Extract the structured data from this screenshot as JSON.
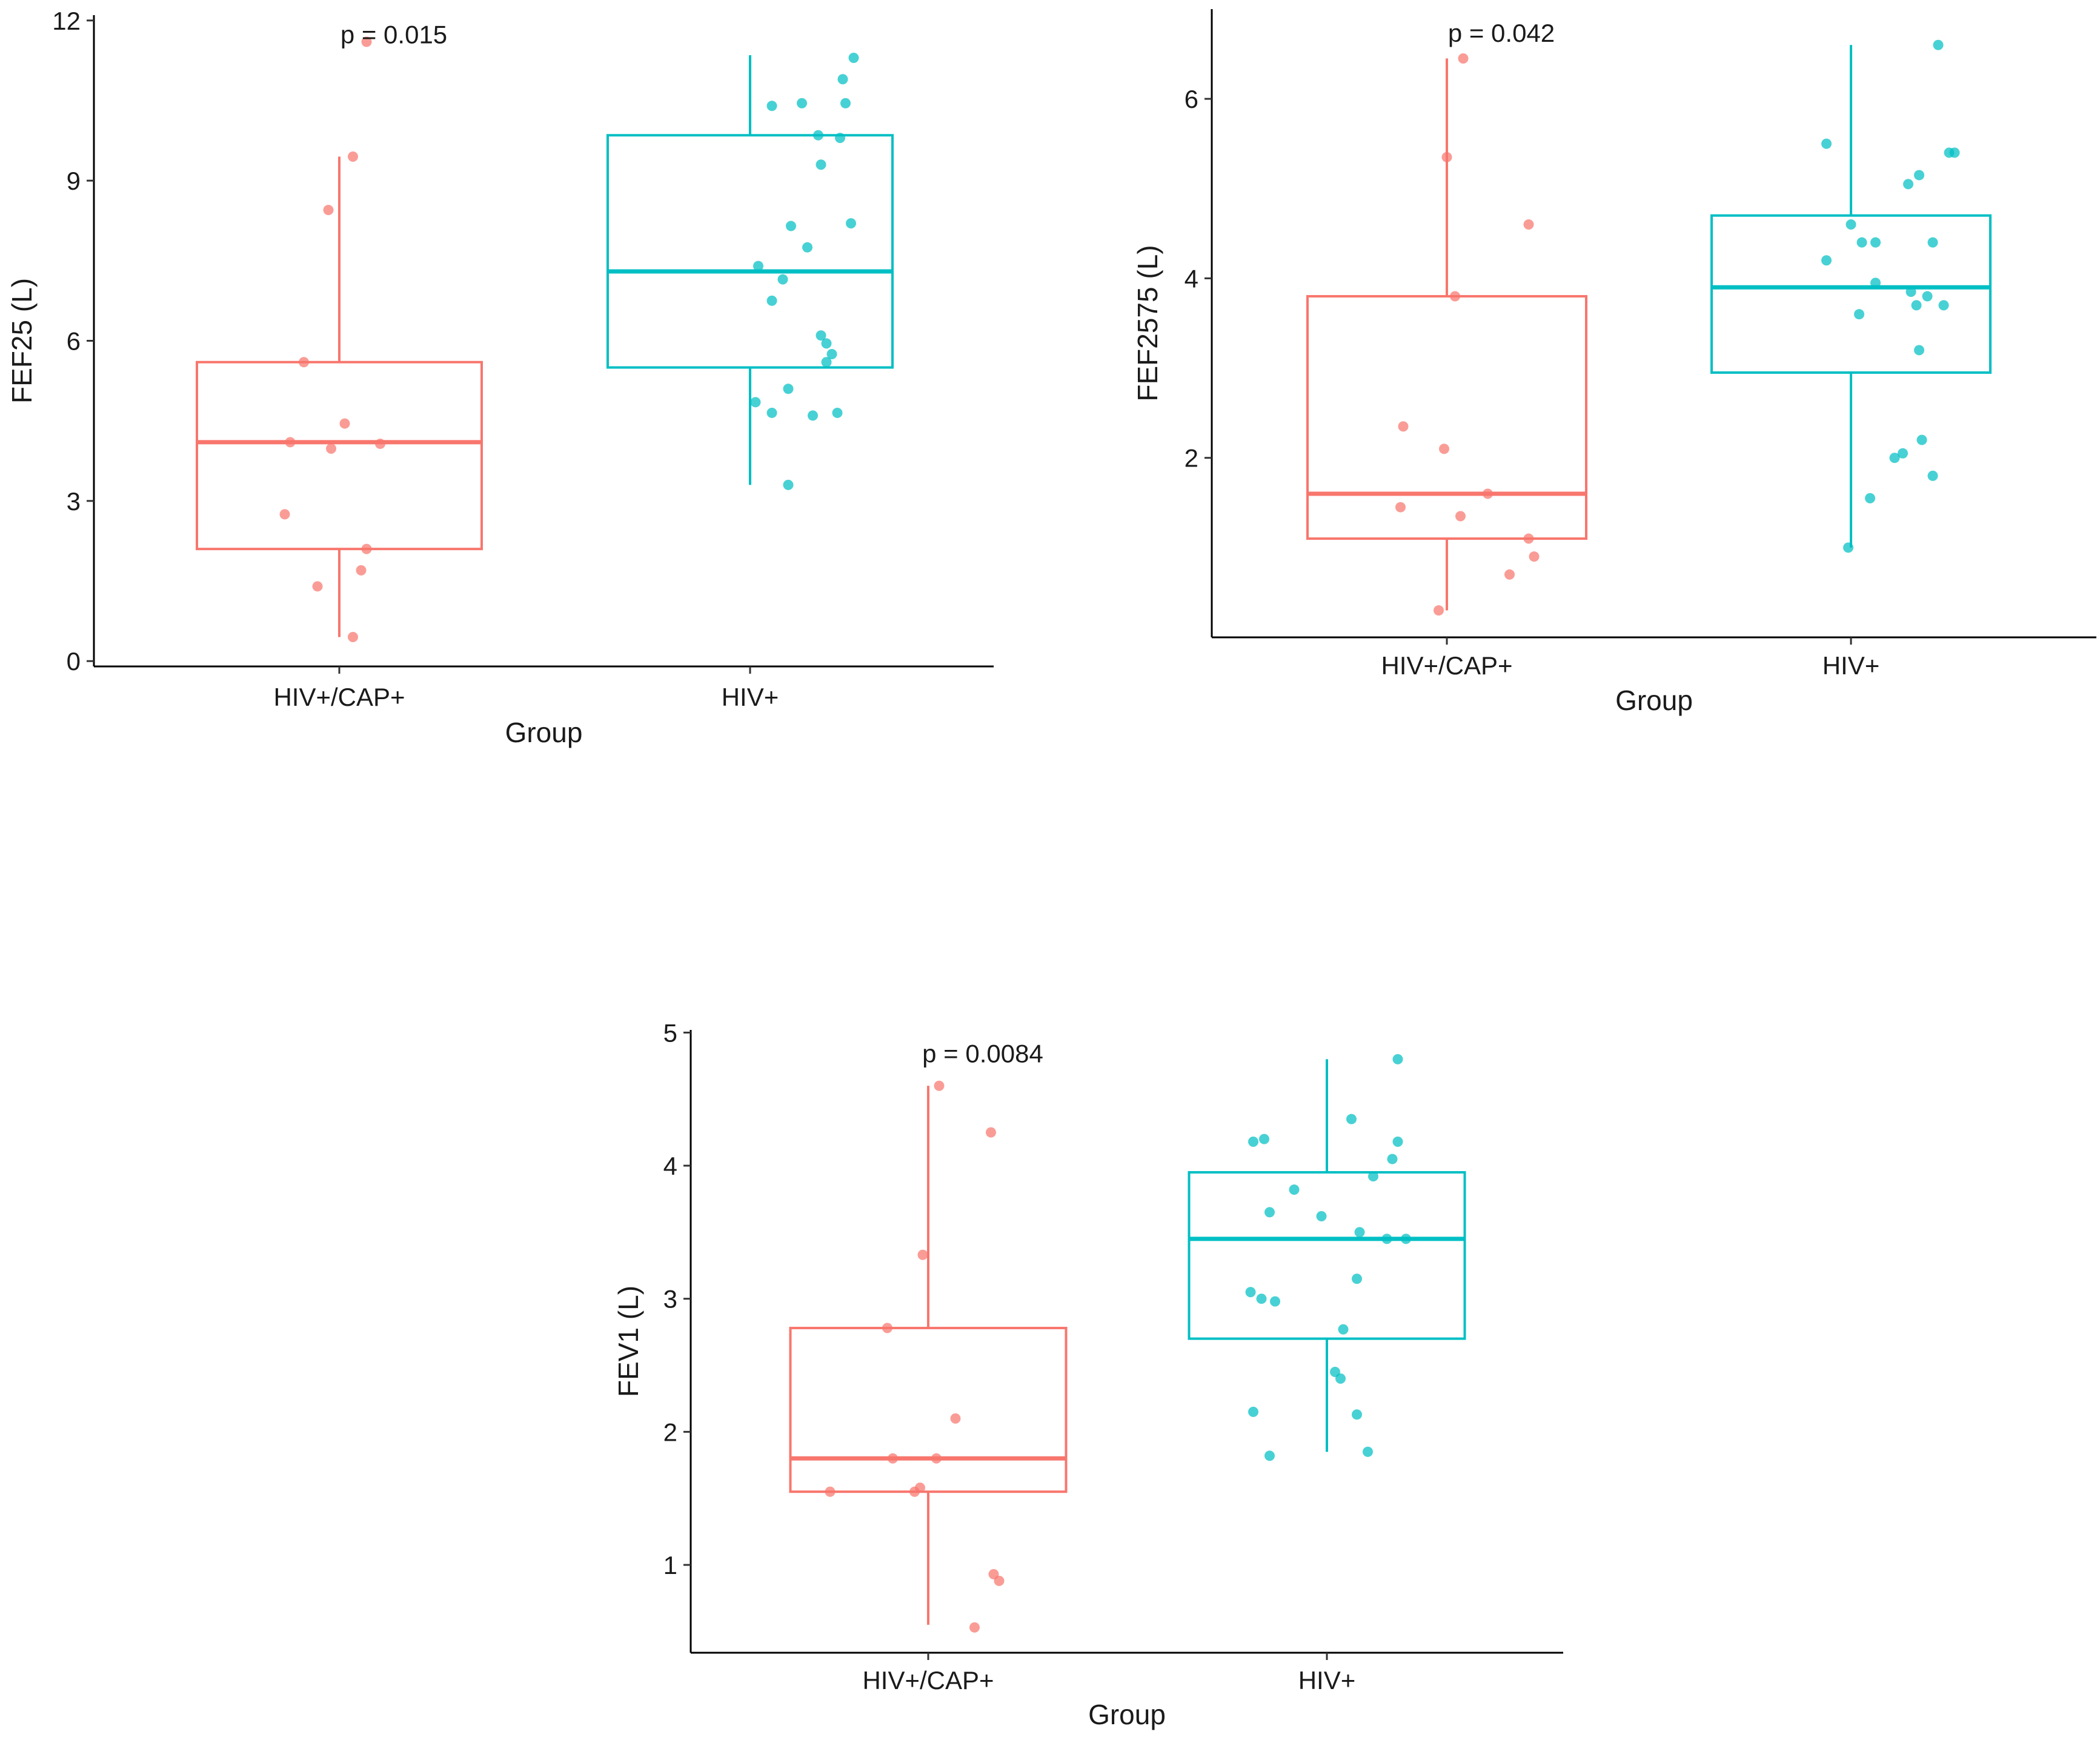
{
  "colors": {
    "group1": "#F8766D",
    "group2": "#00BFC4"
  },
  "chart_data": [
    {
      "type": "box",
      "title": "",
      "xlabel": "Group",
      "ylabel": "FEF25 (L)",
      "categories": [
        "HIV+/CAP+",
        "HIV+"
      ],
      "ylim": [
        -0.1,
        12.1
      ],
      "yticks": [
        0,
        3,
        6,
        9,
        12
      ],
      "ytick_labels": [
        "0",
        "3",
        "6",
        "9",
        "12"
      ],
      "annotation": "p = 0.015",
      "annotation_x": 1.2,
      "annotation_y": 11.73,
      "groups": [
        {
          "name": "HIV+/CAP+",
          "box": {
            "whisker_low": 0.45,
            "q1": 2.1,
            "median": 4.1,
            "q3": 5.6,
            "whisker_high": 9.45
          },
          "points": [
            [
              1.1,
              11.6
            ],
            [
              1.05,
              9.45
            ],
            [
              0.96,
              8.45
            ],
            [
              0.87,
              5.6
            ],
            [
              1.02,
              4.45
            ],
            [
              0.82,
              4.1
            ],
            [
              1.15,
              4.07
            ],
            [
              0.97,
              3.98
            ],
            [
              0.8,
              2.75
            ],
            [
              1.1,
              2.1
            ],
            [
              1.08,
              1.7
            ],
            [
              0.92,
              1.4
            ],
            [
              1.05,
              0.45
            ]
          ]
        },
        {
          "name": "HIV+",
          "box": {
            "whisker_low": 3.3,
            "q1": 5.5,
            "median": 7.3,
            "q3": 9.85,
            "whisker_high": 11.35
          },
          "points": [
            [
              1.38,
              11.3
            ],
            [
              1.34,
              10.9
            ],
            [
              1.19,
              10.45
            ],
            [
              1.35,
              10.45
            ],
            [
              1.08,
              10.4
            ],
            [
              1.25,
              9.85
            ],
            [
              1.33,
              9.8
            ],
            [
              1.26,
              9.3
            ],
            [
              1.37,
              8.2
            ],
            [
              1.15,
              8.15
            ],
            [
              1.21,
              7.75
            ],
            [
              1.03,
              7.4
            ],
            [
              1.12,
              7.15
            ],
            [
              1.08,
              6.75
            ],
            [
              1.26,
              6.1
            ],
            [
              1.28,
              5.95
            ],
            [
              1.3,
              5.75
            ],
            [
              1.28,
              5.6
            ],
            [
              1.14,
              5.1
            ],
            [
              1.02,
              4.85
            ],
            [
              1.08,
              4.65
            ],
            [
              1.23,
              4.6
            ],
            [
              1.32,
              4.65
            ],
            [
              1.14,
              3.3
            ]
          ]
        }
      ]
    },
    {
      "type": "box",
      "title": "",
      "xlabel": "Group",
      "ylabel": "FEF2575 (L)",
      "categories": [
        "HIV+/CAP+",
        "HIV+"
      ],
      "ylim": [
        0.0,
        7.0
      ],
      "yticks": [
        2,
        4,
        6
      ],
      "ytick_labels": [
        "2",
        "4",
        "6"
      ],
      "annotation": "p = 0.042",
      "annotation_x": 1.2,
      "annotation_y": 6.73,
      "groups": [
        {
          "name": "HIV+/CAP+",
          "box": {
            "whisker_low": 0.3,
            "q1": 1.1,
            "median": 1.6,
            "q3": 3.8,
            "whisker_high": 6.45
          },
          "points": [
            [
              1.06,
              6.45
            ],
            [
              1.0,
              5.35
            ],
            [
              1.3,
              4.6
            ],
            [
              1.03,
              3.8
            ],
            [
              0.84,
              2.35
            ],
            [
              0.99,
              2.1
            ],
            [
              1.15,
              1.6
            ],
            [
              0.83,
              1.45
            ],
            [
              1.05,
              1.35
            ],
            [
              1.3,
              1.1
            ],
            [
              1.32,
              0.9
            ],
            [
              1.23,
              0.7
            ],
            [
              0.97,
              0.3
            ]
          ]
        },
        {
          "name": "HIV+",
          "box": {
            "whisker_low": 1.0,
            "q1": 2.95,
            "median": 3.9,
            "q3": 4.7,
            "whisker_high": 6.6
          },
          "points": [
            [
              1.32,
              6.6
            ],
            [
              0.91,
              5.5
            ],
            [
              1.36,
              5.4
            ],
            [
              1.38,
              5.4
            ],
            [
              1.25,
              5.15
            ],
            [
              1.21,
              5.05
            ],
            [
              1.0,
              4.6
            ],
            [
              0.91,
              4.2
            ],
            [
              1.09,
              4.4
            ],
            [
              1.3,
              4.4
            ],
            [
              1.04,
              4.4
            ],
            [
              1.09,
              3.95
            ],
            [
              1.22,
              3.85
            ],
            [
              1.28,
              3.8
            ],
            [
              1.24,
              3.7
            ],
            [
              1.34,
              3.7
            ],
            [
              1.03,
              3.6
            ],
            [
              1.25,
              3.2
            ],
            [
              1.26,
              2.2
            ],
            [
              1.19,
              2.05
            ],
            [
              1.16,
              2.0
            ],
            [
              1.3,
              1.8
            ],
            [
              1.07,
              1.55
            ],
            [
              0.99,
              1.0
            ]
          ]
        }
      ]
    },
    {
      "type": "box",
      "title": "",
      "xlabel": "Group",
      "ylabel": "FEV1 (L)",
      "categories": [
        "HIV+/CAP+",
        "HIV+"
      ],
      "ylim": [
        0.34,
        5.02
      ],
      "yticks": [
        1,
        2,
        3,
        4,
        5
      ],
      "ytick_labels": [
        "1",
        "2",
        "3",
        "4",
        "5"
      ],
      "annotation": "p = 0.0084",
      "annotation_x": 1.2,
      "annotation_y": 4.84,
      "groups": [
        {
          "name": "HIV+/CAP+",
          "box": {
            "whisker_low": 0.55,
            "q1": 1.55,
            "median": 1.8,
            "q3": 2.78,
            "whisker_high": 4.6
          },
          "points": [
            [
              1.04,
              4.6
            ],
            [
              1.23,
              4.25
            ],
            [
              0.98,
              3.33
            ],
            [
              0.85,
              2.78
            ],
            [
              1.1,
              2.1
            ],
            [
              0.87,
              1.8
            ],
            [
              1.03,
              1.8
            ],
            [
              0.64,
              1.55
            ],
            [
              0.95,
              1.55
            ],
            [
              0.97,
              1.58
            ],
            [
              1.24,
              0.93
            ],
            [
              1.26,
              0.88
            ],
            [
              1.17,
              0.53
            ]
          ]
        },
        {
          "name": "HIV+",
          "box": {
            "whisker_low": 1.85,
            "q1": 2.7,
            "median": 3.45,
            "q3": 3.95,
            "whisker_high": 4.8
          },
          "points": [
            [
              1.26,
              4.8
            ],
            [
              1.09,
              4.35
            ],
            [
              0.77,
              4.2
            ],
            [
              0.73,
              4.18
            ],
            [
              1.26,
              4.18
            ],
            [
              1.24,
              4.05
            ],
            [
              1.17,
              3.92
            ],
            [
              0.88,
              3.82
            ],
            [
              0.79,
              3.65
            ],
            [
              0.98,
              3.62
            ],
            [
              1.12,
              3.5
            ],
            [
              1.22,
              3.45
            ],
            [
              1.29,
              3.45
            ],
            [
              1.11,
              3.15
            ],
            [
              0.72,
              3.05
            ],
            [
              0.76,
              3.0
            ],
            [
              0.81,
              2.98
            ],
            [
              1.06,
              2.77
            ],
            [
              1.03,
              2.45
            ],
            [
              1.05,
              2.4
            ],
            [
              0.73,
              2.15
            ],
            [
              1.11,
              2.13
            ],
            [
              0.79,
              1.82
            ],
            [
              1.15,
              1.85
            ]
          ]
        }
      ]
    }
  ]
}
